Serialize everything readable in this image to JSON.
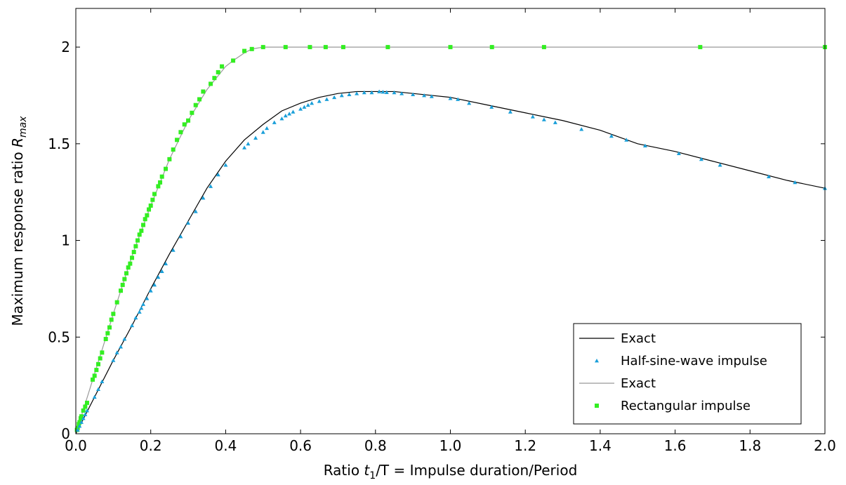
{
  "chart_data": {
    "type": "line",
    "title": "",
    "xlabel_prefix": "Ratio ",
    "xlabel_var": "t",
    "xlabel_sub": "1",
    "xlabel_suffix": "/T = Impulse duration/Period",
    "ylabel_prefix": "Maximum response ratio ",
    "ylabel_var": "R",
    "ylabel_sub": "max",
    "xlim": [
      0,
      2
    ],
    "ylim": [
      0,
      2.2
    ],
    "x_ticks": [
      "0.0",
      "0.2",
      "0.4",
      "0.6",
      "0.8",
      "1.0",
      "1.2",
      "1.4",
      "1.6",
      "1.8",
      "2.0"
    ],
    "x_tick_values": [
      0,
      0.2,
      0.4,
      0.6,
      0.8,
      1.0,
      1.2,
      1.4,
      1.6,
      1.8,
      2.0
    ],
    "y_ticks": [
      "0",
      "0.5",
      "1",
      "1.5",
      "2"
    ],
    "y_tick_values": [
      0,
      0.5,
      1,
      1.5,
      2
    ],
    "grid": false,
    "legend_position": "bottom-right",
    "series": [
      {
        "name": "Exact",
        "kind": "line",
        "color": "#000000",
        "x": [
          0,
          0.05,
          0.1,
          0.15,
          0.2,
          0.25,
          0.3,
          0.35,
          0.4,
          0.45,
          0.5,
          0.55,
          0.6,
          0.65,
          0.7,
          0.75,
          0.8,
          0.85,
          0.9,
          0.95,
          1.0,
          1.1,
          1.2,
          1.3,
          1.4,
          1.5,
          1.6,
          1.7,
          1.8,
          1.9,
          2.0
        ],
        "y": [
          0,
          0.19,
          0.38,
          0.56,
          0.75,
          0.93,
          1.1,
          1.27,
          1.41,
          1.52,
          1.6,
          1.67,
          1.71,
          1.74,
          1.76,
          1.77,
          1.77,
          1.77,
          1.76,
          1.75,
          1.74,
          1.7,
          1.66,
          1.62,
          1.57,
          1.5,
          1.46,
          1.41,
          1.36,
          1.31,
          1.27
        ]
      },
      {
        "name": "Half-sine-wave impulse",
        "kind": "markers",
        "marker": "triangle",
        "color": "#1a9fd9",
        "x": [
          0.005,
          0.01,
          0.015,
          0.02,
          0.025,
          0.03,
          0.05,
          0.06,
          0.07,
          0.1,
          0.11,
          0.12,
          0.13,
          0.15,
          0.16,
          0.17,
          0.175,
          0.18,
          0.19,
          0.2,
          0.21,
          0.22,
          0.23,
          0.24,
          0.26,
          0.28,
          0.3,
          0.32,
          0.34,
          0.36,
          0.38,
          0.4,
          0.45,
          0.46,
          0.48,
          0.5,
          0.51,
          0.53,
          0.55,
          0.56,
          0.57,
          0.58,
          0.6,
          0.61,
          0.62,
          0.63,
          0.65,
          0.67,
          0.69,
          0.71,
          0.73,
          0.75,
          0.77,
          0.79,
          0.81,
          0.82,
          0.83,
          0.85,
          0.87,
          0.9,
          0.93,
          0.95,
          1.0,
          1.02,
          1.05,
          1.11,
          1.16,
          1.22,
          1.25,
          1.28,
          1.35,
          1.43,
          1.47,
          1.52,
          1.61,
          1.67,
          1.72,
          1.85,
          1.92,
          2.0
        ],
        "y": [
          0.02,
          0.04,
          0.06,
          0.08,
          0.1,
          0.12,
          0.19,
          0.23,
          0.27,
          0.38,
          0.42,
          0.45,
          0.49,
          0.56,
          0.6,
          0.63,
          0.65,
          0.67,
          0.7,
          0.74,
          0.77,
          0.81,
          0.84,
          0.88,
          0.95,
          1.02,
          1.09,
          1.15,
          1.22,
          1.28,
          1.34,
          1.39,
          1.48,
          1.5,
          1.53,
          1.56,
          1.58,
          1.61,
          1.63,
          1.645,
          1.655,
          1.665,
          1.68,
          1.69,
          1.7,
          1.71,
          1.72,
          1.73,
          1.74,
          1.75,
          1.755,
          1.76,
          1.765,
          1.765,
          1.77,
          1.768,
          1.766,
          1.765,
          1.76,
          1.755,
          1.75,
          1.745,
          1.735,
          1.73,
          1.71,
          1.69,
          1.665,
          1.64,
          1.625,
          1.61,
          1.575,
          1.54,
          1.52,
          1.49,
          1.45,
          1.42,
          1.39,
          1.33,
          1.3,
          1.27
        ]
      },
      {
        "name": "Exact",
        "kind": "line",
        "color": "#999999",
        "x": [
          0,
          0.05,
          0.1,
          0.15,
          0.2,
          0.25,
          0.3,
          0.35,
          0.4,
          0.42,
          0.45,
          0.47,
          0.5,
          1.0,
          1.5,
          2.0
        ],
        "y": [
          0,
          0.31,
          0.62,
          0.92,
          1.18,
          1.42,
          1.62,
          1.78,
          1.9,
          1.93,
          1.97,
          1.99,
          2.0,
          2.0,
          2.0,
          2.0
        ]
      },
      {
        "name": "Rectangular impulse",
        "kind": "markers",
        "marker": "square",
        "color": "#33ee22",
        "x": [
          0.003,
          0.005,
          0.008,
          0.01,
          0.013,
          0.015,
          0.02,
          0.025,
          0.03,
          0.045,
          0.05,
          0.055,
          0.06,
          0.065,
          0.07,
          0.08,
          0.085,
          0.09,
          0.095,
          0.1,
          0.11,
          0.12,
          0.125,
          0.13,
          0.135,
          0.14,
          0.145,
          0.15,
          0.155,
          0.16,
          0.165,
          0.17,
          0.175,
          0.18,
          0.185,
          0.19,
          0.195,
          0.2,
          0.205,
          0.21,
          0.22,
          0.225,
          0.23,
          0.24,
          0.25,
          0.26,
          0.27,
          0.28,
          0.29,
          0.3,
          0.31,
          0.32,
          0.33,
          0.34,
          0.36,
          0.37,
          0.38,
          0.39,
          0.42,
          0.45,
          0.47,
          0.5,
          0.56,
          0.625,
          0.667,
          0.714,
          0.833,
          1.0,
          1.111,
          1.25,
          1.667,
          2.0
        ],
        "y": [
          0.02,
          0.03,
          0.05,
          0.06,
          0.08,
          0.09,
          0.12,
          0.14,
          0.16,
          0.28,
          0.3,
          0.33,
          0.36,
          0.39,
          0.42,
          0.49,
          0.52,
          0.55,
          0.59,
          0.62,
          0.68,
          0.74,
          0.77,
          0.8,
          0.83,
          0.86,
          0.88,
          0.91,
          0.94,
          0.97,
          1.0,
          1.03,
          1.05,
          1.08,
          1.11,
          1.13,
          1.16,
          1.18,
          1.21,
          1.24,
          1.28,
          1.3,
          1.33,
          1.37,
          1.42,
          1.47,
          1.52,
          1.56,
          1.6,
          1.62,
          1.66,
          1.7,
          1.73,
          1.77,
          1.81,
          1.84,
          1.87,
          1.9,
          1.93,
          1.98,
          1.99,
          2.0,
          2.0,
          2.0,
          2.0,
          2.0,
          2.0,
          2.0,
          2.0,
          2.0,
          2.0,
          2.0
        ]
      }
    ]
  }
}
